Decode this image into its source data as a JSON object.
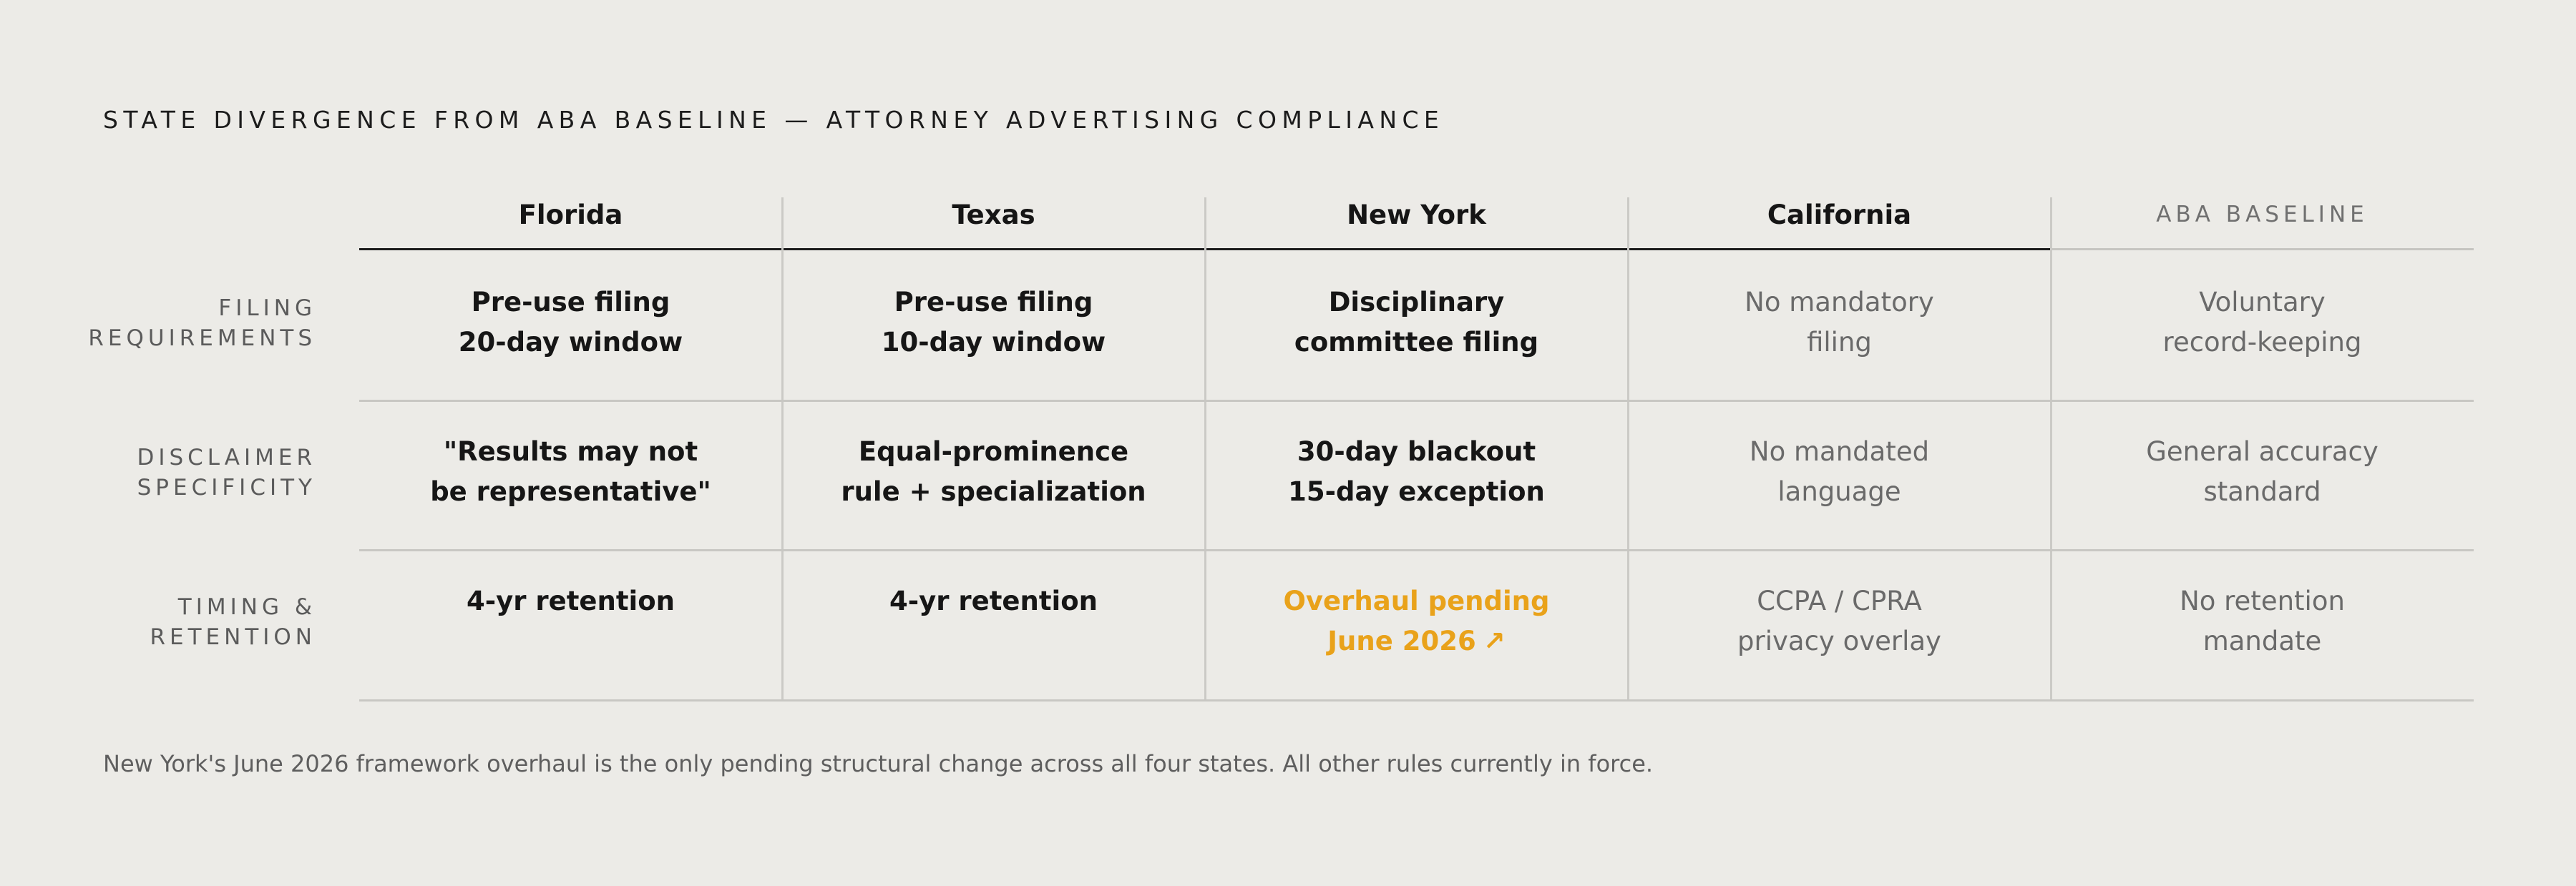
{
  "title": "STATE DIVERGENCE FROM ABA BASELINE — ATTORNEY ADVERTISING COMPLIANCE",
  "columns": [
    "Florida",
    "Texas",
    "New York",
    "California",
    "ABA BASELINE"
  ],
  "rows": [
    {
      "label": [
        "FILING",
        "REQUIREMENTS"
      ],
      "cells": [
        {
          "lines": [
            "Pre-use filing",
            "20-day window"
          ],
          "style": "state"
        },
        {
          "lines": [
            "Pre-use filing",
            "10-day window"
          ],
          "style": "state"
        },
        {
          "lines": [
            "Disciplinary",
            "committee filing"
          ],
          "style": "state"
        },
        {
          "lines": [
            "No mandatory",
            "filing"
          ],
          "style": "muted"
        },
        {
          "lines": [
            "Voluntary",
            "record-keeping"
          ],
          "style": "muted"
        }
      ]
    },
    {
      "label": [
        "DISCLAIMER",
        "SPECIFICITY"
      ],
      "cells": [
        {
          "lines": [
            "\"Results may not",
            "be representative\""
          ],
          "style": "state"
        },
        {
          "lines": [
            "Equal-prominence",
            "rule + specialization"
          ],
          "style": "state"
        },
        {
          "lines": [
            "30-day blackout",
            "15-day exception"
          ],
          "style": "state"
        },
        {
          "lines": [
            "No mandated",
            "language"
          ],
          "style": "muted"
        },
        {
          "lines": [
            "General accuracy",
            "standard"
          ],
          "style": "muted"
        }
      ]
    },
    {
      "label": [
        "TIMING &",
        "RETENTION"
      ],
      "cells": [
        {
          "lines": [
            "4-yr retention"
          ],
          "style": "state"
        },
        {
          "lines": [
            "4-yr retention"
          ],
          "style": "state"
        },
        {
          "lines": [
            "Overhaul pending",
            "June 2026"
          ],
          "style": "pending",
          "icon": "arrow-up-right-icon",
          "icon_glyph": "↗"
        },
        {
          "lines": [
            "CCPA / CPRA",
            "privacy overlay"
          ],
          "style": "muted"
        },
        {
          "lines": [
            "No retention",
            "mandate"
          ],
          "style": "muted"
        }
      ]
    }
  ],
  "footnote": "New York's June 2026 framework overhaul is the only pending structural change across all four states. All other rules currently in force.",
  "colors": {
    "background": "#ecebe7",
    "text": "#171717",
    "muted": "#6a6a6a",
    "pending": "#e9a21a",
    "rule": "#c8c7c3"
  }
}
